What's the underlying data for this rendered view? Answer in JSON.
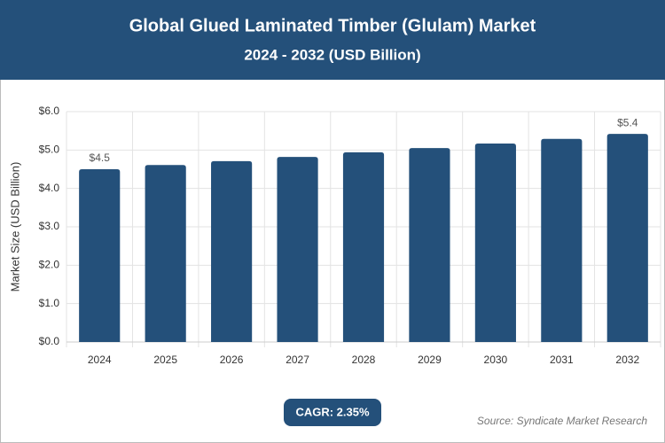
{
  "chart_data": {
    "type": "bar",
    "title": "Global Glued Laminated Timber (Glulam) Market",
    "subtitle": "2024 - 2032 (USD Billion)",
    "y_label": "Market Size (USD Billion)",
    "categories": [
      "2024",
      "2025",
      "2026",
      "2027",
      "2028",
      "2029",
      "2030",
      "2031",
      "2032"
    ],
    "values": [
      4.5,
      4.61,
      4.71,
      4.82,
      4.94,
      5.05,
      5.17,
      5.29,
      5.42
    ],
    "value_labels": [
      "$4.5",
      null,
      null,
      null,
      null,
      null,
      null,
      null,
      "$5.4"
    ],
    "color": "#24507a",
    "ylim": [
      0,
      6
    ],
    "yticks": [
      {
        "value": 0,
        "label": "$0.0"
      },
      {
        "value": 1,
        "label": "$1.0"
      },
      {
        "value": 2,
        "label": "$2.0"
      },
      {
        "value": 3,
        "label": "$3.0"
      },
      {
        "value": 4,
        "label": "$4.0"
      },
      {
        "value": 5,
        "label": "$5.0"
      },
      {
        "value": 6,
        "label": "$6.0"
      }
    ],
    "grid": true,
    "cagr": "CAGR: 2.35%",
    "source": "Source: Syndicate Market Research"
  }
}
